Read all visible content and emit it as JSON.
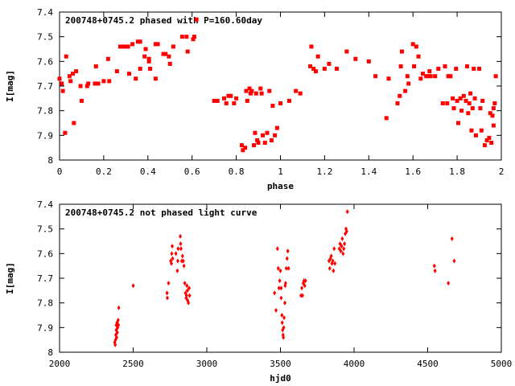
{
  "chart_data": [
    {
      "type": "scatter",
      "title": "200748+0745.2 phased with P=160.60day",
      "xlabel": "phase",
      "ylabel": "I[mag]",
      "xlim": [
        0,
        2
      ],
      "ylim": [
        8,
        7.4
      ],
      "y_inverted": true,
      "grid": false,
      "x_ticks": [
        "0",
        "0.2",
        "0.4",
        "0.6",
        "0.8",
        "1",
        "1.2",
        "1.4",
        "1.6",
        "1.8",
        "2"
      ],
      "y_ticks": [
        "7.4",
        "7.5",
        "7.6",
        "7.7",
        "7.8",
        "7.9",
        "8"
      ],
      "marker_color": "#ff0000",
      "series": [
        {
          "points": [
            [
              0.0,
              7.67
            ],
            [
              0.01,
              7.69
            ],
            [
              0.015,
              7.72
            ],
            [
              0.025,
              7.89
            ],
            [
              0.03,
              7.58
            ],
            [
              0.045,
              7.66
            ],
            [
              0.05,
              7.68
            ],
            [
              0.06,
              7.65
            ],
            [
              0.065,
              7.85
            ],
            [
              0.075,
              7.64
            ],
            [
              0.095,
              7.7
            ],
            [
              0.1,
              7.76
            ],
            [
              0.125,
              7.7
            ],
            [
              0.13,
              7.69
            ],
            [
              0.16,
              7.69
            ],
            [
              0.165,
              7.62
            ],
            [
              0.175,
              7.69
            ],
            [
              0.2,
              7.68
            ],
            [
              0.22,
              7.59
            ],
            [
              0.225,
              7.68
            ],
            [
              0.26,
              7.64
            ],
            [
              0.275,
              7.54
            ],
            [
              0.29,
              7.54
            ],
            [
              0.3,
              7.54
            ],
            [
              0.31,
              7.54
            ],
            [
              0.315,
              7.65
            ],
            [
              0.33,
              7.53
            ],
            [
              0.345,
              7.67
            ],
            [
              0.355,
              7.52
            ],
            [
              0.365,
              7.52
            ],
            [
              0.365,
              7.63
            ],
            [
              0.39,
              7.55
            ],
            [
              0.385,
              7.58
            ],
            [
              0.405,
              7.6
            ],
            [
              0.405,
              7.59
            ],
            [
              0.41,
              7.63
            ],
            [
              0.435,
              7.67
            ],
            [
              0.435,
              7.53
            ],
            [
              0.445,
              7.53
            ],
            [
              0.47,
              7.57
            ],
            [
              0.48,
              7.57
            ],
            [
              0.495,
              7.58
            ],
            [
              0.5,
              7.61
            ],
            [
              0.515,
              7.54
            ],
            [
              0.555,
              7.5
            ],
            [
              0.575,
              7.5
            ],
            [
              0.58,
              7.56
            ],
            [
              0.605,
              7.51
            ],
            [
              0.61,
              7.5
            ],
            [
              0.62,
              7.43
            ],
            [
              0.7,
              7.76
            ],
            [
              0.715,
              7.76
            ],
            [
              0.745,
              7.75
            ],
            [
              0.755,
              7.77
            ],
            [
              0.765,
              7.74
            ],
            [
              0.775,
              7.74
            ],
            [
              0.79,
              7.77
            ],
            [
              0.8,
              7.75
            ],
            [
              0.825,
              7.94
            ],
            [
              0.83,
              7.96
            ],
            [
              0.84,
              7.95
            ],
            [
              0.845,
              7.72
            ],
            [
              0.85,
              7.76
            ],
            [
              0.86,
              7.71
            ],
            [
              0.865,
              7.73
            ],
            [
              0.87,
              7.72
            ],
            [
              0.88,
              7.94
            ],
            [
              0.885,
              7.89
            ],
            [
              0.89,
              7.73
            ],
            [
              0.895,
              7.92
            ],
            [
              0.9,
              7.93
            ],
            [
              0.91,
              7.71
            ],
            [
              0.915,
              7.73
            ],
            [
              0.92,
              7.9
            ],
            [
              0.93,
              7.93
            ],
            [
              0.94,
              7.89
            ],
            [
              0.95,
              7.72
            ],
            [
              0.96,
              7.92
            ],
            [
              0.965,
              7.78
            ],
            [
              0.975,
              7.9
            ],
            [
              0.985,
              7.87
            ],
            [
              1.0,
              7.77
            ],
            [
              1.04,
              7.76
            ],
            [
              1.07,
              7.72
            ],
            [
              1.09,
              7.73
            ],
            [
              1.135,
              7.62
            ],
            [
              1.14,
              7.54
            ],
            [
              1.15,
              7.63
            ],
            [
              1.16,
              7.64
            ],
            [
              1.17,
              7.58
            ],
            [
              1.2,
              7.63
            ],
            [
              1.22,
              7.61
            ],
            [
              1.255,
              7.63
            ],
            [
              1.3,
              7.56
            ],
            [
              1.34,
              7.59
            ],
            [
              1.4,
              7.6
            ],
            [
              1.43,
              7.66
            ],
            [
              1.48,
              7.83
            ],
            [
              1.49,
              7.67
            ],
            [
              1.53,
              7.77
            ],
            [
              1.54,
              7.74
            ],
            [
              1.545,
              7.62
            ],
            [
              1.55,
              7.56
            ],
            [
              1.565,
              7.72
            ],
            [
              1.575,
              7.66
            ],
            [
              1.58,
              7.69
            ],
            [
              1.6,
              7.53
            ],
            [
              1.605,
              7.62
            ],
            [
              1.615,
              7.54
            ],
            [
              1.625,
              7.58
            ],
            [
              1.635,
              7.67
            ],
            [
              1.645,
              7.65
            ],
            [
              1.66,
              7.66
            ],
            [
              1.67,
              7.66
            ],
            [
              1.675,
              7.64
            ],
            [
              1.68,
              7.66
            ],
            [
              1.7,
              7.66
            ],
            [
              1.715,
              7.63
            ],
            [
              1.735,
              7.77
            ],
            [
              1.745,
              7.62
            ],
            [
              1.755,
              7.77
            ],
            [
              1.76,
              7.66
            ],
            [
              1.77,
              7.66
            ],
            [
              1.78,
              7.75
            ],
            [
              1.785,
              7.79
            ],
            [
              1.795,
              7.63
            ],
            [
              1.8,
              7.76
            ],
            [
              1.805,
              7.85
            ],
            [
              1.815,
              7.75
            ],
            [
              1.82,
              7.8
            ],
            [
              1.83,
              7.74
            ],
            [
              1.84,
              7.76
            ],
            [
              1.845,
              7.62
            ],
            [
              1.85,
              7.81
            ],
            [
              1.855,
              7.77
            ],
            [
              1.86,
              7.73
            ],
            [
              1.865,
              7.88
            ],
            [
              1.87,
              7.79
            ],
            [
              1.875,
              7.63
            ],
            [
              1.88,
              7.75
            ],
            [
              1.885,
              7.9
            ],
            [
              1.9,
              7.63
            ],
            [
              1.905,
              7.79
            ],
            [
              1.91,
              7.88
            ],
            [
              1.915,
              7.76
            ],
            [
              1.925,
              7.94
            ],
            [
              1.935,
              7.92
            ],
            [
              1.945,
              7.91
            ],
            [
              1.95,
              7.81
            ],
            [
              1.955,
              7.93
            ],
            [
              1.96,
              7.82
            ],
            [
              1.965,
              7.79
            ],
            [
              1.965,
              7.86
            ],
            [
              1.97,
              7.77
            ],
            [
              1.975,
              7.66
            ]
          ]
        }
      ]
    },
    {
      "type": "scatter",
      "title": "200748+0745.2 not phased light curve",
      "xlabel": "hjd0",
      "ylabel": "I[mag]",
      "xlim": [
        2000,
        5000
      ],
      "ylim": [
        8,
        7.4
      ],
      "y_inverted": true,
      "grid": false,
      "x_ticks": [
        "2000",
        "2500",
        "3000",
        "3500",
        "4000",
        "4500",
        "5000"
      ],
      "y_ticks": [
        "7.4",
        "7.5",
        "7.6",
        "7.7",
        "7.8",
        "7.9",
        "8"
      ],
      "marker_color": "#ff0000",
      "series": [
        {
          "points": [
            [
              2375,
              7.96
            ],
            [
              2378,
              7.97
            ],
            [
              2380,
              7.95
            ],
            [
              2382,
              7.93
            ],
            [
              2385,
              7.91
            ],
            [
              2385,
              7.89
            ],
            [
              2388,
              7.94
            ],
            [
              2390,
              7.88
            ],
            [
              2392,
              7.92
            ],
            [
              2395,
              7.9
            ],
            [
              2398,
              7.87
            ],
            [
              2400,
              7.89
            ],
            [
              2402,
              7.82
            ],
            [
              2500,
              7.73
            ],
            [
              2730,
              7.76
            ],
            [
              2732,
              7.78
            ],
            [
              2740,
              7.72
            ],
            [
              2755,
              7.63
            ],
            [
              2760,
              7.64
            ],
            [
              2762,
              7.6
            ],
            [
              2765,
              7.57
            ],
            [
              2768,
              7.62
            ],
            [
              2790,
              7.6
            ],
            [
              2800,
              7.67
            ],
            [
              2803,
              7.63
            ],
            [
              2805,
              7.58
            ],
            [
              2820,
              7.53
            ],
            [
              2822,
              7.56
            ],
            [
              2825,
              7.58
            ],
            [
              2830,
              7.63
            ],
            [
              2835,
              7.61
            ],
            [
              2840,
              7.63
            ],
            [
              2845,
              7.65
            ],
            [
              2850,
              7.72
            ],
            [
              2855,
              7.76
            ],
            [
              2860,
              7.78
            ],
            [
              2862,
              7.77
            ],
            [
              2865,
              7.73
            ],
            [
              2868,
              7.75
            ],
            [
              2870,
              7.79
            ],
            [
              2875,
              7.8
            ],
            [
              2880,
              7.74
            ],
            [
              2883,
              7.77
            ],
            [
              3460,
              7.76
            ],
            [
              3470,
              7.83
            ],
            [
              3480,
              7.58
            ],
            [
              3485,
              7.66
            ],
            [
              3490,
              7.74
            ],
            [
              3495,
              7.71
            ],
            [
              3500,
              7.67
            ],
            [
              3505,
              7.74
            ],
            [
              3505,
              7.78
            ],
            [
              3510,
              7.85
            ],
            [
              3512,
              7.88
            ],
            [
              3515,
              7.91
            ],
            [
              3518,
              7.93
            ],
            [
              3520,
              7.94
            ],
            [
              3522,
              7.9
            ],
            [
              3525,
              7.86
            ],
            [
              3530,
              7.8
            ],
            [
              3532,
              7.73
            ],
            [
              3535,
              7.72
            ],
            [
              3540,
              7.66
            ],
            [
              3545,
              7.62
            ],
            [
              3550,
              7.59
            ],
            [
              3555,
              7.66
            ],
            [
              3640,
              7.77
            ],
            [
              3645,
              7.74
            ],
            [
              3650,
              7.77
            ],
            [
              3655,
              7.72
            ],
            [
              3660,
              7.71
            ],
            [
              3665,
              7.73
            ],
            [
              3670,
              7.71
            ],
            [
              3830,
              7.63
            ],
            [
              3835,
              7.66
            ],
            [
              3840,
              7.62
            ],
            [
              3845,
              7.61
            ],
            [
              3850,
              7.64
            ],
            [
              3855,
              7.63
            ],
            [
              3860,
              7.67
            ],
            [
              3865,
              7.58
            ],
            [
              3870,
              7.64
            ],
            [
              3900,
              7.58
            ],
            [
              3905,
              7.56
            ],
            [
              3910,
              7.59
            ],
            [
              3915,
              7.57
            ],
            [
              3920,
              7.54
            ],
            [
              3925,
              7.6
            ],
            [
              3930,
              7.58
            ],
            [
              3935,
              7.56
            ],
            [
              3940,
              7.52
            ],
            [
              3945,
              7.5
            ],
            [
              3950,
              7.51
            ],
            [
              3955,
              7.43
            ],
            [
              4545,
              7.65
            ],
            [
              4550,
              7.67
            ],
            [
              4640,
              7.72
            ],
            [
              4665,
              7.54
            ],
            [
              4680,
              7.63
            ]
          ]
        }
      ]
    }
  ]
}
